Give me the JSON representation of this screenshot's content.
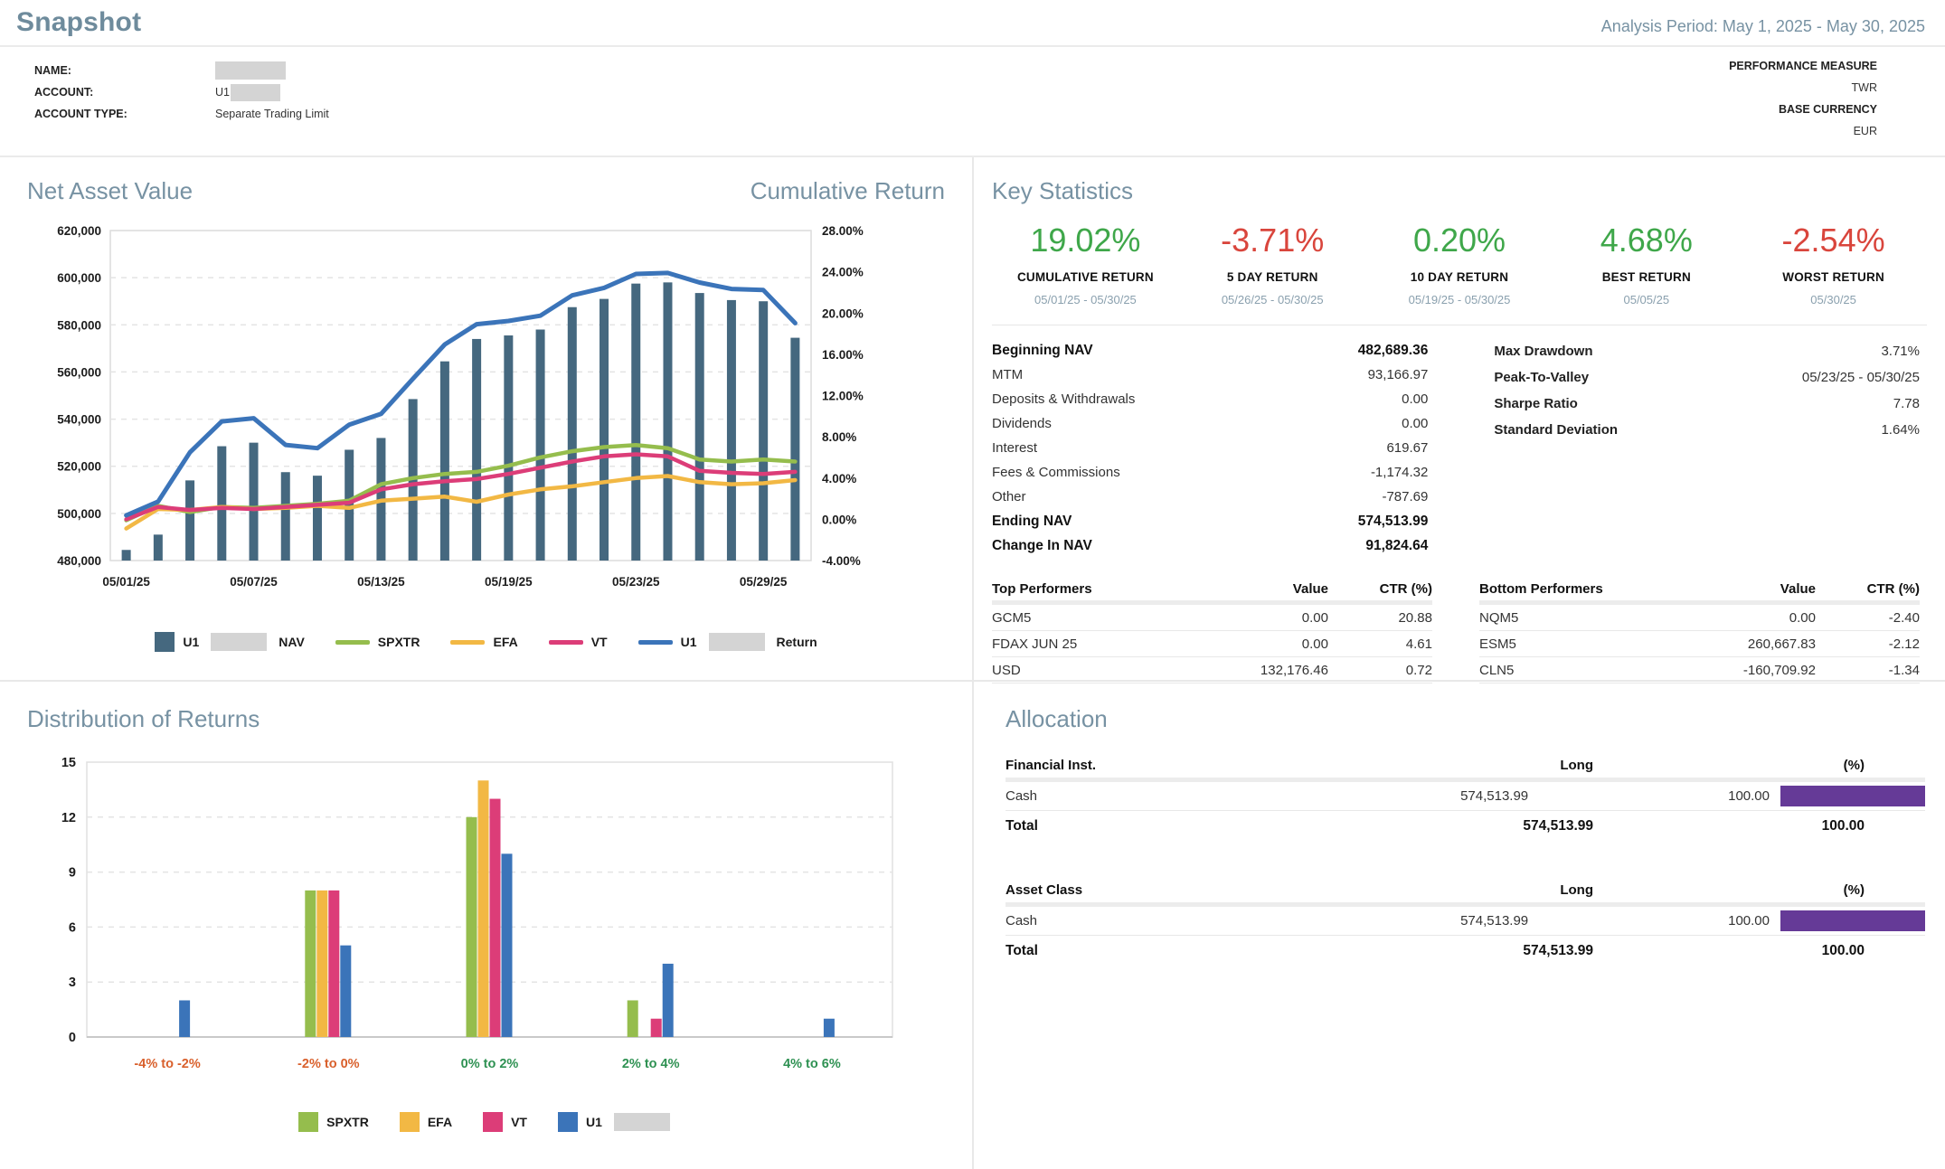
{
  "header": {
    "title": "Snapshot",
    "analysis_period": "Analysis Period: May 1, 2025 - May 30, 2025"
  },
  "account_info": {
    "name_label": "NAME:",
    "account_label": "ACCOUNT:",
    "account_value_prefix": "U1",
    "account_type_label": "ACCOUNT TYPE:",
    "account_type_value": "Separate Trading Limit",
    "performance_measure_label": "PERFORMANCE MEASURE",
    "performance_measure_value": "TWR",
    "base_currency_label": "BASE CURRENCY",
    "base_currency_value": "EUR"
  },
  "nav_section": {
    "title_left": "Net Asset Value",
    "title_right": "Cumulative Return"
  },
  "key_statistics": {
    "title": "Key Statistics",
    "stats": [
      {
        "value": "19.02%",
        "label": "CUMULATIVE RETURN",
        "period": "05/01/25 - 05/30/25",
        "color": "#3fa74a"
      },
      {
        "value": "-3.71%",
        "label": "5 DAY RETURN",
        "period": "05/26/25 - 05/30/25",
        "color": "#d9453c"
      },
      {
        "value": "0.20%",
        "label": "10 DAY RETURN",
        "period": "05/19/25 - 05/30/25",
        "color": "#3fa74a"
      },
      {
        "value": "4.68%",
        "label": "BEST RETURN",
        "period": "05/05/25",
        "color": "#3fa74a"
      },
      {
        "value": "-2.54%",
        "label": "WORST RETURN",
        "period": "05/30/25",
        "color": "#d9453c"
      }
    ],
    "nav_breakdown": [
      {
        "label": "Beginning NAV",
        "value": "482,689.36"
      },
      {
        "label": "MTM",
        "value": "93,166.97"
      },
      {
        "label": "Deposits & Withdrawals",
        "value": "0.00"
      },
      {
        "label": "Dividends",
        "value": "0.00"
      },
      {
        "label": "Interest",
        "value": "619.67"
      },
      {
        "label": "Fees & Commissions",
        "value": "-1,174.32"
      },
      {
        "label": "Other",
        "value": "-787.69"
      },
      {
        "label": "Ending NAV",
        "value": "574,513.99"
      },
      {
        "label": "Change In NAV",
        "value": "91,824.64"
      }
    ],
    "risk_stats": [
      {
        "label": "Max Drawdown",
        "value": "3.71%"
      },
      {
        "label": "Peak-To-Valley",
        "value": "05/23/25 - 05/30/25"
      },
      {
        "label": "Sharpe Ratio",
        "value": "7.78"
      },
      {
        "label": "Standard Deviation",
        "value": "1.64%"
      }
    ],
    "top_performers": {
      "headers": [
        "Top Performers",
        "Value",
        "CTR (%)"
      ],
      "rows": [
        [
          "GCM5",
          "0.00",
          "20.88"
        ],
        [
          "FDAX JUN 25",
          "0.00",
          "4.61"
        ],
        [
          "USD",
          "132,176.46",
          "0.72"
        ]
      ]
    },
    "bottom_performers": {
      "headers": [
        "Bottom Performers",
        "Value",
        "CTR (%)"
      ],
      "rows": [
        [
          "NQM5",
          "0.00",
          "-2.40"
        ],
        [
          "ESM5",
          "260,667.83",
          "-2.12"
        ],
        [
          "CLN5",
          "-160,709.92",
          "-1.34"
        ]
      ]
    }
  },
  "allocation": {
    "title": "Allocation",
    "bar_color": "#653a97",
    "tables": [
      {
        "headers": [
          "Financial Inst.",
          "Long",
          "(%)"
        ],
        "rows": [
          {
            "label": "Cash",
            "long": "574,513.99",
            "pct": "100.00",
            "bar_pct": 100
          }
        ],
        "total": {
          "label": "Total",
          "long": "574,513.99",
          "pct": "100.00"
        }
      },
      {
        "headers": [
          "Asset Class",
          "Long",
          "(%)"
        ],
        "rows": [
          {
            "label": "Cash",
            "long": "574,513.99",
            "pct": "100.00",
            "bar_pct": 100
          }
        ],
        "total": {
          "label": "Total",
          "long": "574,513.99",
          "pct": "100.00"
        }
      }
    ]
  },
  "chart_data": [
    {
      "id": "nav_cumulative_return",
      "type": "combo",
      "title_left": "Net Asset Value",
      "title_right": "Cumulative Return",
      "dates": [
        "05/01/25",
        "05/02/25",
        "05/05/25",
        "05/06/25",
        "05/07/25",
        "05/08/25",
        "05/09/25",
        "05/12/25",
        "05/13/25",
        "05/14/25",
        "05/15/25",
        "05/16/25",
        "05/19/25",
        "05/20/25",
        "05/21/25",
        "05/22/25",
        "05/23/25",
        "05/26/25",
        "05/27/25",
        "05/28/25",
        "05/29/25",
        "05/30/25"
      ],
      "x_tick_labels": [
        "05/01/25",
        "05/07/25",
        "05/13/25",
        "05/19/25",
        "05/23/25",
        "05/29/25"
      ],
      "x_tick_indices": [
        0,
        4,
        8,
        12,
        16,
        20
      ],
      "left_axis": {
        "min": 480000,
        "max": 620000,
        "step": 20000
      },
      "right_axis": {
        "min": -4,
        "max": 28,
        "step": 4
      },
      "bar_series": {
        "name": "U1 NAV",
        "color": "#45687f",
        "axis": "left",
        "values": [
          484500,
          491000,
          514000,
          528500,
          530000,
          517500,
          516000,
          527000,
          532000,
          548500,
          564500,
          574000,
          575500,
          578000,
          587500,
          591000,
          597500,
          598000,
          593500,
          590500,
          590000,
          574514
        ]
      },
      "line_series": [
        {
          "name": "SPXTR",
          "color": "#95bd4d",
          "axis": "right",
          "values": [
            -0.1,
            1.3,
            0.7,
            1.2,
            1.1,
            1.3,
            1.5,
            1.8,
            3.4,
            4.0,
            4.4,
            4.6,
            5.2,
            6.0,
            6.6,
            7.0,
            7.2,
            6.9,
            5.8,
            5.6,
            5.8,
            5.6
          ]
        },
        {
          "name": "EFA",
          "color": "#f2b844",
          "axis": "right",
          "values": [
            -0.9,
            1.0,
            0.9,
            1.2,
            1.0,
            1.1,
            1.3,
            1.1,
            1.8,
            2.0,
            2.2,
            1.7,
            2.4,
            2.9,
            3.2,
            3.6,
            4.0,
            4.2,
            3.6,
            3.4,
            3.5,
            3.8
          ]
        },
        {
          "name": "VT",
          "color": "#dc3d78",
          "axis": "right",
          "values": [
            0.0,
            1.2,
            0.9,
            1.1,
            1.0,
            1.2,
            1.4,
            1.6,
            2.9,
            3.4,
            3.7,
            3.9,
            4.4,
            5.0,
            5.6,
            6.1,
            6.3,
            6.1,
            4.7,
            4.5,
            4.4,
            4.6
          ]
        },
        {
          "name": "U1 Return",
          "color": "#3b74b9",
          "axis": "right",
          "values": [
            0.38,
            1.72,
            6.49,
            9.49,
            9.8,
            7.21,
            6.9,
            9.18,
            10.22,
            13.63,
            16.95,
            18.92,
            19.23,
            19.74,
            21.71,
            22.44,
            23.79,
            23.89,
            22.96,
            22.34,
            22.23,
            19.02
          ]
        }
      ],
      "legend": [
        {
          "swatch": "square",
          "color": "#45687f",
          "prefix": "U1",
          "redacted": true,
          "label": "NAV"
        },
        {
          "swatch": "line",
          "color": "#95bd4d",
          "label": "SPXTR"
        },
        {
          "swatch": "line",
          "color": "#f2b844",
          "label": "EFA"
        },
        {
          "swatch": "line",
          "color": "#dc3d78",
          "label": "VT"
        },
        {
          "swatch": "line",
          "color": "#3b74b9",
          "prefix": "U1",
          "redacted": true,
          "label": "Return"
        }
      ]
    },
    {
      "id": "distribution_of_returns",
      "type": "grouped_bar",
      "title": "Distribution of Returns",
      "categories": [
        "-4% to -2%",
        "-2% to 0%",
        "0% to 2%",
        "2% to 4%",
        "4% to 6%"
      ],
      "category_colors": [
        "#d9602c",
        "#d9602c",
        "#2e9152",
        "#2e9152",
        "#2e9152"
      ],
      "y_axis": {
        "min": 0,
        "max": 15,
        "step": 3
      },
      "series": [
        {
          "name": "SPXTR",
          "color": "#95bd4d",
          "values": [
            0,
            8,
            12,
            2,
            0
          ]
        },
        {
          "name": "EFA",
          "color": "#f2b844",
          "values": [
            0,
            8,
            14,
            0,
            0
          ]
        },
        {
          "name": "VT",
          "color": "#dc3d78",
          "values": [
            0,
            8,
            13,
            1,
            0
          ]
        },
        {
          "name": "U1",
          "color": "#3b74b9",
          "values": [
            2,
            5,
            10,
            4,
            1
          ]
        }
      ],
      "legend": [
        {
          "swatch": "square",
          "color": "#95bd4d",
          "label": "SPXTR"
        },
        {
          "swatch": "square",
          "color": "#f2b844",
          "label": "EFA"
        },
        {
          "swatch": "square",
          "color": "#dc3d78",
          "label": "VT"
        },
        {
          "swatch": "square",
          "color": "#3b74b9",
          "prefix": "U1",
          "redacted": true,
          "label": ""
        }
      ]
    }
  ]
}
